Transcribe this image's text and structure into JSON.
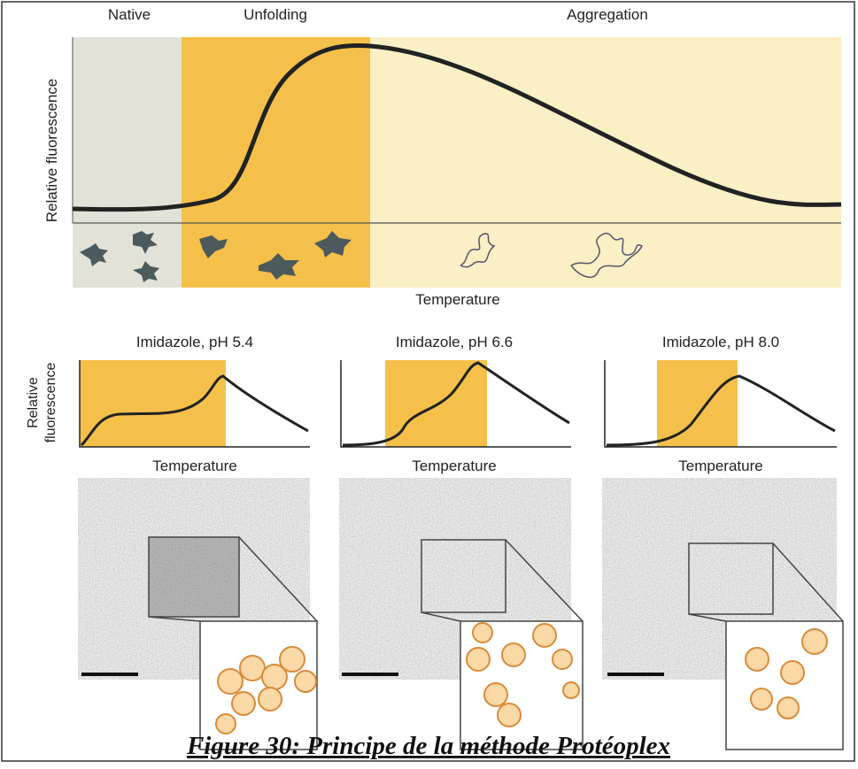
{
  "header": {
    "phases": [
      "Native",
      "Unfolding",
      "Aggregation"
    ],
    "y_axis_label": "Relative fluorescence",
    "x_axis_label": "Temperature"
  },
  "panels": [
    {
      "title": "Imidazole, pH 5.4",
      "x_axis_label": "Temperature"
    },
    {
      "title": "Imidazole, pH 6.6",
      "x_axis_label": "Temperature"
    },
    {
      "title": "Imidazole, pH 8.0",
      "x_axis_label": "Temperature"
    }
  ],
  "panel_y_axis_label": [
    "Relative",
    "fluorescence"
  ],
  "caption": "Figure 30: Principe de la méthode Protéoplex"
}
